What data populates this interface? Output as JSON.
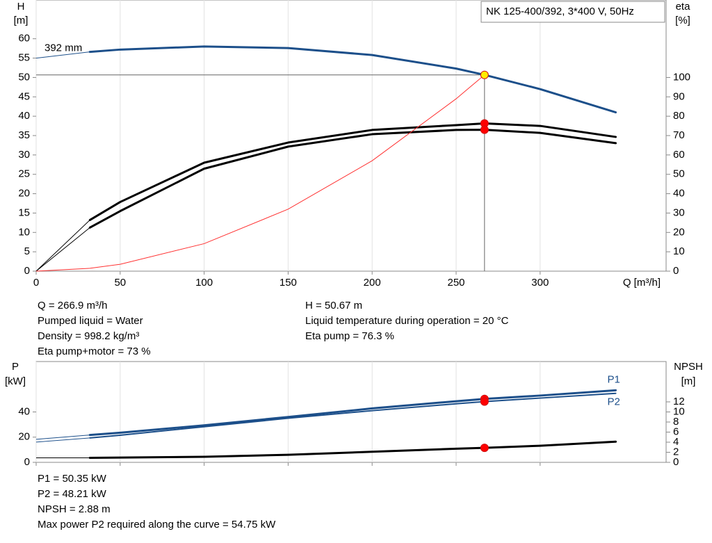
{
  "chart_data": [
    {
      "type": "line",
      "title": "NK 125-400/392, 3*400 V, 50Hz",
      "y_label": "H",
      "y_unit": "[m]",
      "y2_label": "eta",
      "y2_unit": "[%]",
      "x_label": "Q [m³/h]",
      "xlim": [
        0,
        375
      ],
      "xticks": [
        0,
        50,
        100,
        150,
        200,
        250,
        300
      ],
      "ylim": [
        0,
        70
      ],
      "yticks": [
        0,
        5,
        10,
        15,
        20,
        25,
        30,
        35,
        40,
        45,
        50,
        55,
        60
      ],
      "y2lim": [
        0,
        140
      ],
      "y2ticks": [
        0,
        10,
        20,
        30,
        40,
        50,
        60,
        70,
        80,
        90,
        100
      ],
      "grid": "x",
      "x": [
        0,
        32,
        50,
        100,
        150,
        200,
        250,
        266.9,
        300,
        345
      ],
      "operating_x": 266.9,
      "operating_lines": true,
      "series": [
        {
          "name": "392 mm",
          "color": "#1c4f8a",
          "width": 3,
          "marker": "#ffee00",
          "values": [
            55,
            56.6,
            57.2,
            58,
            57.6,
            55.8,
            52.3,
            50.67,
            47,
            41
          ]
        },
        {
          "color": "#000000",
          "width": 3,
          "axis": "y2",
          "marker": "#ff0000",
          "values": [
            0,
            26.4,
            35.7,
            56,
            66.4,
            72.9,
            75.4,
            76.3,
            75,
            69.3
          ]
        },
        {
          "color": "#000000",
          "width": 3,
          "axis": "y2",
          "marker": "#ff0000",
          "values": [
            0,
            22.5,
            31,
            52.9,
            64.3,
            70.7,
            72.9,
            73,
            71.4,
            66.1
          ]
        },
        {
          "color": "#ff3030",
          "width": 1,
          "values": [
            0,
            0.73,
            1.78,
            7.1,
            16,
            28.5,
            44.5,
            50.67,
            null,
            null
          ]
        }
      ]
    },
    {
      "type": "line",
      "y_label": "P",
      "y_unit": "[kW]",
      "y2_label": "NPSH",
      "y2_unit": "[m]",
      "xlim": [
        0,
        375
      ],
      "xticks": [
        0,
        50,
        100,
        150,
        200,
        250,
        300
      ],
      "ylim": [
        0,
        80
      ],
      "yticks": [
        0,
        20,
        40
      ],
      "y2lim": [
        0,
        20
      ],
      "y2ticks": [
        0,
        2,
        4,
        6,
        8,
        10,
        12
      ],
      "grid": "x",
      "x": [
        0,
        32,
        50,
        100,
        150,
        200,
        250,
        266.9,
        300,
        345
      ],
      "operating_x": 266.9,
      "operating_lines": false,
      "series": [
        {
          "name": "P1",
          "color": "#1c4f8a",
          "width": 3,
          "marker": "#ff0000",
          "values": [
            18.3,
            21.7,
            23.5,
            29.4,
            36,
            42.8,
            48.5,
            50.35,
            53,
            57.2
          ]
        },
        {
          "name": "P2",
          "color": "#1c4f8a",
          "width": 2,
          "marker": "#ff0000",
          "values": [
            16.1,
            19.4,
            21.5,
            28.3,
            35,
            41,
            46.5,
            48.21,
            51,
            54.75
          ]
        },
        {
          "color": "#000000",
          "width": 3,
          "axis": "y2",
          "marker": "#ff0000",
          "values": [
            0.9,
            0.9,
            0.95,
            1.1,
            1.5,
            2.1,
            2.7,
            2.88,
            3.3,
            4.1
          ]
        }
      ]
    }
  ],
  "info_top": {
    "left": [
      "Q = 266.9 m³/h",
      "Pumped liquid = Water",
      "Density = 998.2 kg/m³",
      "Eta pump+motor = 73 %"
    ],
    "right": [
      "H = 50.67 m",
      "Liquid temperature during operation = 20 °C",
      "Eta pump = 76.3 %"
    ]
  },
  "info_bottom": [
    "P1 = 50.35 kW",
    "P2 = 48.21 kW",
    "NPSH = 2.88 m",
    "Max power P2 required along the curve = 54.75 kW"
  ]
}
